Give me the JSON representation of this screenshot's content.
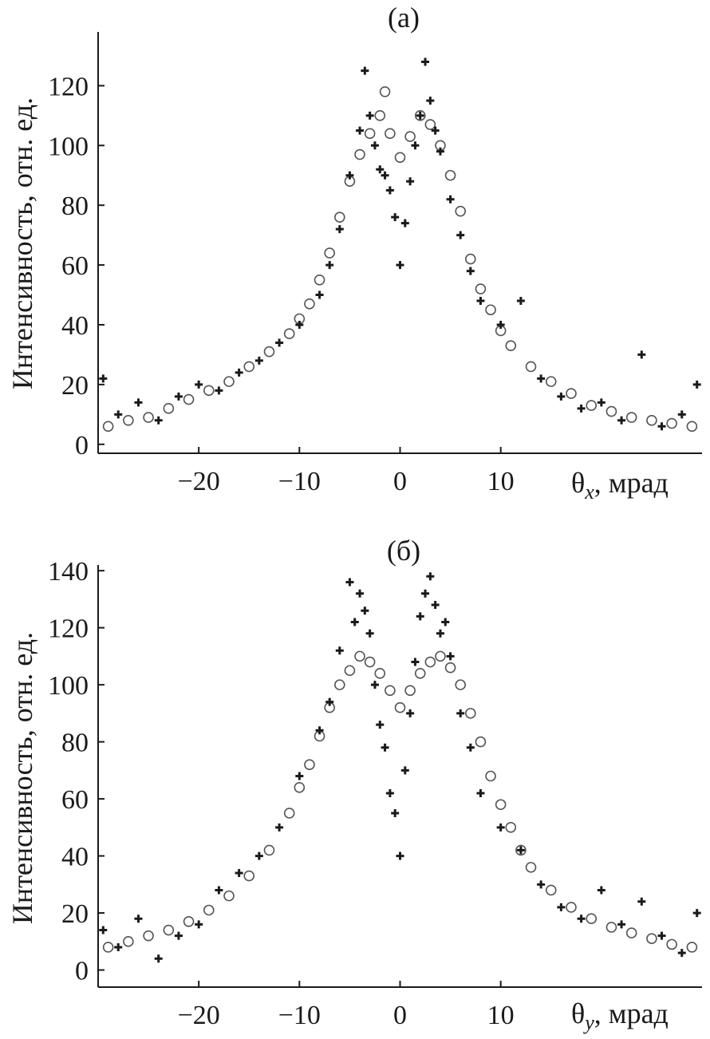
{
  "chart_data": [
    {
      "type": "scatter",
      "panel_label": "(a)",
      "xlabel_symbol": "θ",
      "xlabel_sub": "x",
      "xlabel_unit": ", мрад",
      "ylabel": "Интенсивность, отн. ед.",
      "xlim": [
        -30,
        30
      ],
      "ylim": [
        -3,
        138
      ],
      "xticks": [
        -20,
        -10,
        0,
        10
      ],
      "xtick_labels": [
        "−20",
        "−10",
        "0",
        "10"
      ],
      "yticks": [
        0,
        20,
        40,
        60,
        80,
        100,
        120
      ],
      "ytick_labels": [
        "0",
        "20",
        "40",
        "60",
        "80",
        "100",
        "120"
      ],
      "grid": false,
      "series": [
        {
          "marker": "circle-open",
          "x": [
            -29,
            -27,
            -25,
            -23,
            -21,
            -19,
            -17,
            -15,
            -13,
            -11,
            -10,
            -9,
            -8,
            -7,
            -6,
            -5,
            -4,
            -3,
            -2,
            -1.5,
            -1,
            0,
            1,
            2,
            3,
            4,
            5,
            6,
            7,
            8,
            9,
            10,
            11,
            13,
            15,
            17,
            19,
            21,
            23,
            25,
            27,
            29
          ],
          "y": [
            6,
            8,
            9,
            12,
            15,
            18,
            21,
            26,
            31,
            37,
            42,
            47,
            55,
            64,
            76,
            88,
            97,
            104,
            110,
            118,
            104,
            96,
            103,
            110,
            107,
            100,
            90,
            78,
            62,
            52,
            45,
            38,
            33,
            26,
            21,
            17,
            13,
            11,
            9,
            8,
            7,
            6
          ]
        },
        {
          "marker": "plus",
          "x": [
            -29.5,
            -28,
            -26,
            -24,
            -22,
            -20,
            -18,
            -16,
            -14,
            -12,
            -10,
            -8,
            -7,
            -6,
            -5,
            -4,
            -3.5,
            -3,
            -2.5,
            -2,
            -1.5,
            -1,
            -0.5,
            0,
            0.5,
            1,
            1.5,
            2,
            2.5,
            3,
            3.5,
            4,
            5,
            6,
            7,
            8,
            10,
            12,
            14,
            16,
            18,
            20,
            22,
            24,
            26,
            28,
            29.5
          ],
          "y": [
            22,
            10,
            14,
            8,
            16,
            20,
            18,
            24,
            28,
            34,
            40,
            50,
            60,
            72,
            90,
            105,
            125,
            110,
            100,
            92,
            90,
            85,
            76,
            60,
            74,
            88,
            100,
            110,
            128,
            115,
            105,
            98,
            82,
            70,
            58,
            48,
            40,
            48,
            22,
            16,
            12,
            14,
            8,
            30,
            6,
            10,
            20
          ]
        }
      ]
    },
    {
      "type": "scatter",
      "panel_label": "(б)",
      "xlabel_symbol": "θ",
      "xlabel_sub": "y",
      "xlabel_unit": ", мрад",
      "ylabel": "Интенсивность, отн. ед.",
      "xlim": [
        -30,
        30
      ],
      "ylim": [
        -6,
        142
      ],
      "xticks": [
        -20,
        -10,
        0,
        10
      ],
      "xtick_labels": [
        "−20",
        "−10",
        "0",
        "10"
      ],
      "yticks": [
        0,
        20,
        40,
        60,
        80,
        100,
        120,
        140
      ],
      "ytick_labels": [
        "0",
        "20",
        "40",
        "60",
        "80",
        "100",
        "120",
        "140"
      ],
      "grid": false,
      "series": [
        {
          "marker": "circle-open",
          "x": [
            -29,
            -27,
            -25,
            -23,
            -21,
            -19,
            -17,
            -15,
            -13,
            -11,
            -10,
            -9,
            -8,
            -7,
            -6,
            -5,
            -4,
            -3,
            -2,
            -1,
            0,
            1,
            2,
            3,
            4,
            5,
            6,
            7,
            8,
            9,
            10,
            11,
            12,
            13,
            15,
            17,
            19,
            21,
            23,
            25,
            27,
            29
          ],
          "y": [
            8,
            10,
            12,
            14,
            17,
            21,
            26,
            33,
            42,
            55,
            64,
            72,
            82,
            92,
            100,
            105,
            110,
            108,
            104,
            98,
            92,
            98,
            104,
            108,
            110,
            106,
            100,
            90,
            80,
            68,
            58,
            50,
            42,
            36,
            28,
            22,
            18,
            15,
            13,
            11,
            9,
            8
          ]
        },
        {
          "marker": "plus",
          "x": [
            -29.5,
            -28,
            -26,
            -24,
            -22,
            -20,
            -18,
            -16,
            -14,
            -12,
            -10,
            -8,
            -7,
            -6,
            -5,
            -4.5,
            -4,
            -3.5,
            -3,
            -2.5,
            -2,
            -1.5,
            -1,
            -0.5,
            0,
            0.5,
            1,
            1.5,
            2,
            2.5,
            3,
            3.5,
            4,
            4.5,
            5,
            6,
            7,
            8,
            10,
            12,
            14,
            16,
            18,
            20,
            22,
            24,
            26,
            28,
            29.5
          ],
          "y": [
            14,
            8,
            18,
            4,
            12,
            16,
            28,
            34,
            40,
            50,
            68,
            84,
            94,
            112,
            136,
            122,
            132,
            126,
            118,
            100,
            86,
            78,
            62,
            55,
            40,
            70,
            90,
            108,
            124,
            132,
            138,
            128,
            118,
            122,
            110,
            90,
            78,
            62,
            50,
            42,
            30,
            22,
            18,
            28,
            16,
            24,
            12,
            6,
            20
          ]
        }
      ]
    }
  ]
}
